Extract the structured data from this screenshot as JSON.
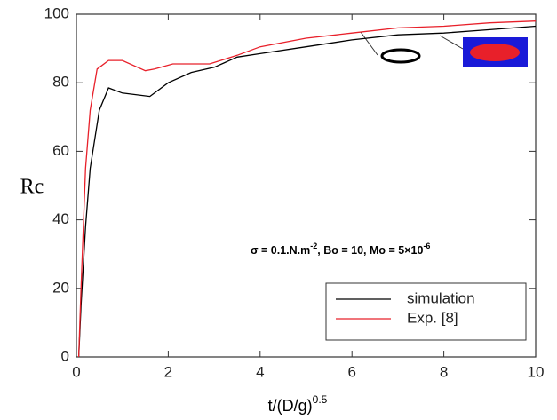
{
  "chart_data": {
    "type": "line",
    "x_label": {
      "base": "t/(D/g)",
      "superscript": "0.5"
    },
    "y_label": "Rc",
    "annotation": {
      "parts": [
        {
          "text": "σ = 0.1.N.m"
        },
        {
          "text": "-2",
          "sup": true
        },
        {
          "text": ", Bo = 10, Mo = 5×10"
        },
        {
          "text": "-6",
          "sup": true
        }
      ]
    },
    "xlim": [
      0,
      10
    ],
    "xticks": [
      0,
      2,
      4,
      6,
      8,
      10
    ],
    "ylim": [
      0,
      100
    ],
    "yticks": [
      0,
      20,
      40,
      60,
      80,
      100
    ],
    "legend": "lower-right",
    "series": [
      {
        "name": "simulation",
        "color": "#000000",
        "x": [
          0.05,
          0.1,
          0.2,
          0.3,
          0.5,
          0.7,
          1.0,
          1.6,
          2.0,
          2.5,
          3.0,
          3.5,
          4.0,
          5.0,
          6.0,
          7.0,
          8.0,
          9.0,
          10.0
        ],
        "values": [
          0,
          15,
          38,
          55,
          72,
          78.5,
          77,
          76,
          80,
          83,
          84.5,
          87.5,
          88.5,
          90.5,
          92.5,
          94,
          94.5,
          95.5,
          96.5
        ]
      },
      {
        "name": "Exp. [8]",
        "color": "#e8202a",
        "x": [
          0.05,
          0.1,
          0.2,
          0.3,
          0.45,
          0.7,
          1.0,
          1.5,
          1.7,
          2.1,
          2.9,
          3.5,
          4.0,
          5.0,
          6.0,
          7.0,
          8.0,
          9.0,
          10.0
        ],
        "values": [
          0,
          20,
          55,
          72,
          84,
          86.5,
          86.5,
          83.5,
          84,
          85.5,
          85.5,
          88,
          90.5,
          93,
          94.5,
          96,
          96.5,
          97.5,
          98
        ]
      }
    ]
  }
}
